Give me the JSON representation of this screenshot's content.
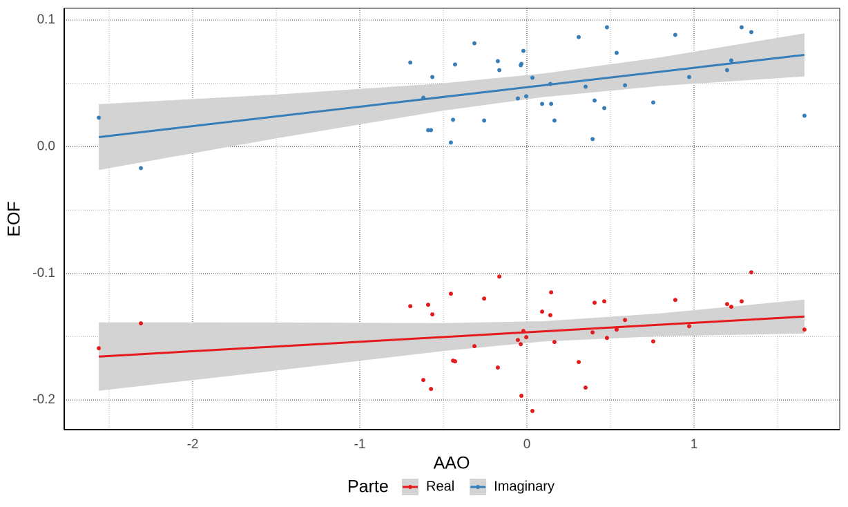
{
  "chart_data": {
    "type": "scatter",
    "x_label": "AAO",
    "y_label": "EOF",
    "legend_title": "Parte",
    "xlim": [
      -2.769,
      1.872
    ],
    "ylim": [
      -0.2234,
      0.1093
    ],
    "xticks": [
      -2,
      -1,
      0,
      1
    ],
    "yticks": [
      0.1,
      {
        "value": 0,
        "label": "0.0"
      },
      -0.1,
      -0.2
    ],
    "x_minor_grid": [
      -2.5,
      -1.5,
      -0.5,
      0.5,
      1.5
    ],
    "y_minor_grid": [
      0.05,
      -0.05,
      -0.15
    ],
    "grid": true,
    "x": [
      -2.562,
      -2.31,
      -0.698,
      -0.62,
      -0.591,
      -0.574,
      -0.566,
      -0.455,
      -0.442,
      -0.43,
      -0.314,
      -0.256,
      -0.174,
      -0.165,
      -0.054,
      -0.037,
      -0.033,
      -0.021,
      -0.004,
      0.033,
      0.091,
      0.14,
      0.145,
      0.165,
      0.31,
      0.351,
      0.393,
      0.405,
      0.463,
      0.479,
      0.537,
      0.587,
      0.756,
      0.888,
      0.971,
      1.198,
      1.223,
      1.285,
      1.343,
      1.661
    ],
    "fit_x": [
      -2.562,
      1.661
    ],
    "band_x": [
      -2.562,
      -1.5,
      -0.5,
      0.1,
      0.8,
      1.661
    ],
    "band_color": "#d3d3d3",
    "series": [
      {
        "name": "Real",
        "color": "#e41a1c",
        "values": [
          -0.1591,
          -0.1395,
          -0.1259,
          -0.1842,
          -0.1248,
          -0.1913,
          -0.1324,
          -0.1161,
          -0.1689,
          -0.1695,
          -0.1575,
          -0.1199,
          -0.1744,
          -0.1025,
          -0.1526,
          -0.1559,
          -0.1967,
          -0.1455,
          -0.1504,
          -0.2087,
          -0.1302,
          -0.133,
          -0.115,
          -0.1542,
          -0.17,
          -0.1902,
          -0.1466,
          -0.1232,
          -0.1221,
          -0.151,
          -0.1444,
          -0.1368,
          -0.1537,
          -0.121,
          -0.1417,
          -0.1243,
          -0.1264,
          -0.1221,
          -0.0992,
          -0.1444
        ],
        "fit": [
          -0.1657,
          -0.1341
        ],
        "band_lower": [
          -0.1927,
          -0.1768,
          -0.1613,
          -0.1538,
          -0.1496,
          -0.1475
        ],
        "band_upper": [
          -0.1387,
          -0.1388,
          -0.1393,
          -0.1378,
          -0.1316,
          -0.1207
        ]
      },
      {
        "name": "Imaginary",
        "color": "#377eb8",
        "values": [
          0.0229,
          -0.0169,
          0.0665,
          0.0387,
          0.0131,
          0.0131,
          0.055,
          0.0033,
          0.0213,
          0.0649,
          0.0817,
          0.0207,
          0.0676,
          0.0605,
          0.0381,
          0.0643,
          0.0654,
          0.0757,
          0.0398,
          0.0545,
          0.0338,
          0.0496,
          0.0338,
          0.0207,
          0.0866,
          0.0474,
          0.006,
          0.0365,
          0.0305,
          0.0943,
          0.0741,
          0.0485,
          0.0349,
          0.0883,
          0.055,
          0.0605,
          0.0681,
          0.0943,
          0.0905,
          0.0245
        ],
        "fit": [
          0.0076,
          0.0725
        ],
        "band_lower": [
          -0.0184,
          0.0066,
          0.0285,
          0.0392,
          0.048,
          0.0555
        ],
        "band_upper": [
          0.0336,
          0.0412,
          0.0501,
          0.0578,
          0.0706,
          0.0895
        ]
      }
    ]
  }
}
